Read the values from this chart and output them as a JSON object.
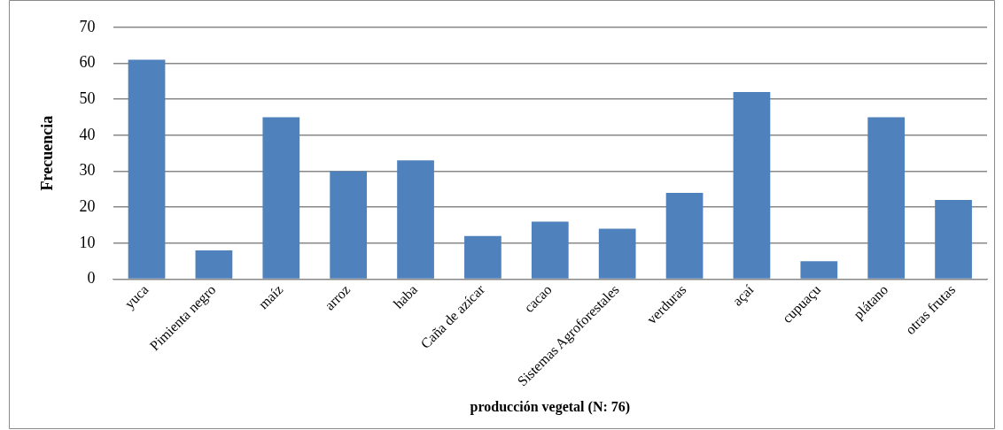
{
  "chart_data": {
    "type": "bar",
    "xlabel": "producción vegetal (N: 76)",
    "ylabel": "Frecuencia",
    "categories": [
      "yuca",
      "Pimienta negro",
      "maíz",
      "arroz",
      "haba",
      "Caña de azícar",
      "cacao",
      "Sistemas Agroforestales",
      "verduras",
      "açaí",
      "cupuaçu",
      "plátano",
      "otras frutas"
    ],
    "values": [
      61,
      8,
      45,
      30,
      33,
      12,
      16,
      14,
      24,
      52,
      5,
      45,
      22
    ],
    "color": "#4f81bd",
    "ylim": [
      0,
      70
    ],
    "yticks": [
      0,
      10,
      20,
      30,
      40,
      50,
      60,
      70
    ],
    "grid": "y",
    "legend": false
  }
}
